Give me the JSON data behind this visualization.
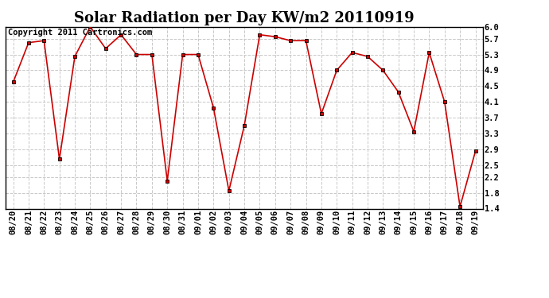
{
  "title": "Solar Radiation per Day KW/m2 20110919",
  "copyright_text": "Copyright 2011 Cartronics.com",
  "dates": [
    "08/20",
    "08/21",
    "08/22",
    "08/23",
    "08/24",
    "08/25",
    "08/26",
    "08/27",
    "08/28",
    "08/29",
    "08/30",
    "08/31",
    "09/01",
    "09/02",
    "09/03",
    "09/04",
    "09/05",
    "09/06",
    "09/07",
    "09/08",
    "09/09",
    "09/10",
    "09/11",
    "09/12",
    "09/13",
    "09/14",
    "09/15",
    "09/16",
    "09/17",
    "09/18",
    "09/19"
  ],
  "values": [
    4.6,
    5.6,
    5.65,
    2.65,
    5.25,
    6.0,
    5.45,
    5.8,
    5.3,
    5.3,
    2.1,
    5.3,
    5.3,
    3.95,
    1.85,
    3.5,
    5.8,
    5.75,
    5.65,
    5.65,
    3.8,
    4.9,
    5.35,
    5.25,
    4.9,
    4.35,
    3.35,
    5.35,
    4.1,
    1.45,
    2.85
  ],
  "line_color": "#cc0000",
  "marker": "s",
  "marker_size": 3,
  "background_color": "#ffffff",
  "plot_background": "#ffffff",
  "grid_color": "#c8c8c8",
  "grid_style": "--",
  "ylim": [
    1.4,
    6.0
  ],
  "yticks": [
    1.4,
    1.8,
    2.2,
    2.5,
    2.9,
    3.3,
    3.7,
    4.1,
    4.5,
    4.9,
    5.3,
    5.7,
    6.0
  ],
  "ytick_labels": [
    "1.4",
    "1.8",
    "2.2",
    "2.5",
    "2.9",
    "3.3",
    "3.7",
    "4.1",
    "4.5",
    "4.9",
    "5.3",
    "5.7",
    "6.0"
  ],
  "title_fontsize": 13,
  "tick_fontsize": 7.5,
  "copyright_fontsize": 7.5
}
